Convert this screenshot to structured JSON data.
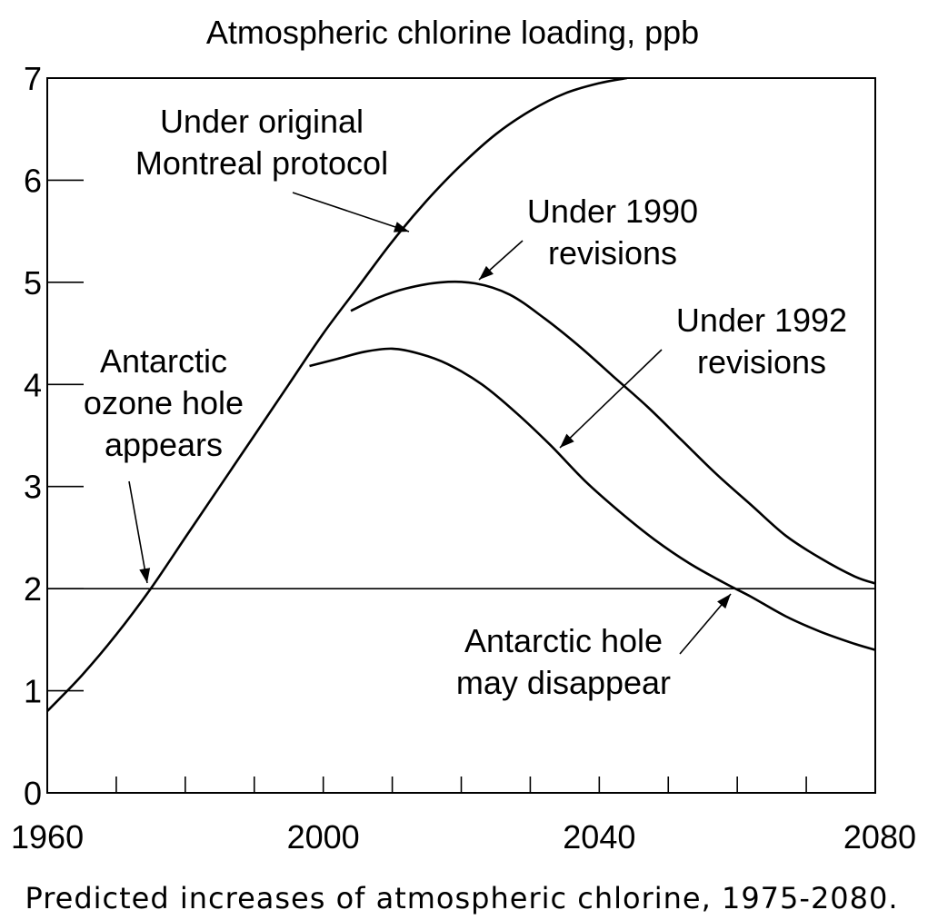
{
  "chart_data": {
    "type": "line",
    "title": "Atmospheric chlorine loading, ppb",
    "caption": "Predicted increases of atmospheric chlorine, 1975-2080.",
    "xlabel": "",
    "ylabel": "",
    "xlim": [
      1960,
      2080
    ],
    "ylim": [
      0,
      7
    ],
    "x_ticks": [
      1960,
      1970,
      1980,
      1990,
      2000,
      2010,
      2020,
      2030,
      2040,
      2050,
      2060,
      2070,
      2080
    ],
    "x_tick_labels": [
      "1960",
      "2000",
      "2040",
      "2080"
    ],
    "x_tick_label_values": [
      1960,
      2000,
      2040,
      2080
    ],
    "y_ticks": [
      0,
      1,
      2,
      3,
      4,
      5,
      6,
      7
    ],
    "y_tick_labels": [
      "0",
      "1",
      "2",
      "3",
      "4",
      "5",
      "6",
      "7"
    ],
    "grid": false,
    "reference_line": {
      "y": 2
    },
    "series": [
      {
        "key": "original",
        "points": [
          [
            1960,
            0.8
          ],
          [
            1965,
            1.15
          ],
          [
            1970,
            1.55
          ],
          [
            1975,
            2.0
          ],
          [
            1980,
            2.5
          ],
          [
            1985,
            3.0
          ],
          [
            1990,
            3.5
          ],
          [
            1995,
            4.0
          ],
          [
            2000,
            4.5
          ],
          [
            2005,
            4.95
          ],
          [
            2010,
            5.4
          ],
          [
            2015,
            5.8
          ],
          [
            2020,
            6.15
          ],
          [
            2025,
            6.45
          ],
          [
            2030,
            6.68
          ],
          [
            2035,
            6.85
          ],
          [
            2040,
            6.95
          ],
          [
            2044,
            7.0
          ]
        ]
      },
      {
        "key": "rev1990",
        "points": [
          [
            2004,
            4.72
          ],
          [
            2008,
            4.85
          ],
          [
            2012,
            4.94
          ],
          [
            2017,
            5.0
          ],
          [
            2022,
            4.99
          ],
          [
            2027,
            4.88
          ],
          [
            2032,
            4.65
          ],
          [
            2037,
            4.38
          ],
          [
            2042,
            4.08
          ],
          [
            2047,
            3.78
          ],
          [
            2052,
            3.45
          ],
          [
            2057,
            3.12
          ],
          [
            2062,
            2.82
          ],
          [
            2067,
            2.52
          ],
          [
            2072,
            2.3
          ],
          [
            2077,
            2.12
          ],
          [
            2080,
            2.05
          ]
        ]
      },
      {
        "key": "rev1992",
        "points": [
          [
            1998,
            4.18
          ],
          [
            2002,
            4.25
          ],
          [
            2006,
            4.32
          ],
          [
            2010,
            4.35
          ],
          [
            2014,
            4.3
          ],
          [
            2018,
            4.2
          ],
          [
            2023,
            4.0
          ],
          [
            2028,
            3.72
          ],
          [
            2033,
            3.4
          ],
          [
            2038,
            3.05
          ],
          [
            2043,
            2.75
          ],
          [
            2048,
            2.48
          ],
          [
            2053,
            2.25
          ],
          [
            2058,
            2.06
          ],
          [
            2062,
            1.92
          ],
          [
            2067,
            1.73
          ],
          [
            2072,
            1.58
          ],
          [
            2077,
            1.46
          ],
          [
            2080,
            1.4
          ]
        ]
      }
    ],
    "annotations": [
      {
        "key": "original",
        "lines": [
          "Under original",
          "Montreal protocol"
        ]
      },
      {
        "key": "rev1990",
        "lines": [
          "Under 1990",
          "revisions"
        ]
      },
      {
        "key": "rev1992",
        "lines": [
          "Under 1992",
          "revisions"
        ]
      },
      {
        "key": "appears",
        "lines": [
          "Antarctic",
          "ozone hole",
          "appears"
        ]
      },
      {
        "key": "disappear",
        "lines": [
          "Antarctic hole",
          "may disappear"
        ]
      }
    ]
  }
}
